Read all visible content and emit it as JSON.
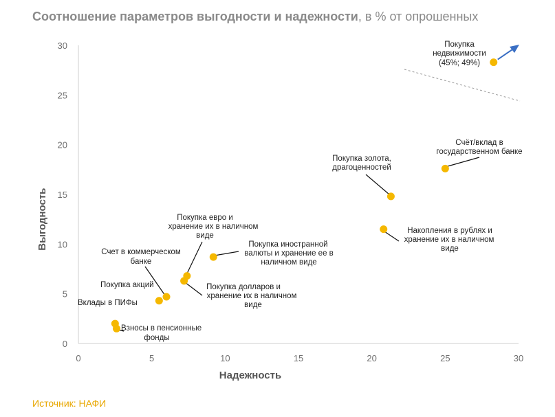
{
  "header": {
    "title_bold": "Соотношение параметров выгодности и надежности",
    "title_rest": ", в % от опрошенных"
  },
  "footer": {
    "source": "Источник: НАФИ"
  },
  "colors": {
    "point": "#f5b800",
    "leader": "#111111",
    "arrow": "#3a6fc4",
    "trend": "#9a9a9a",
    "source": "#e8a700"
  },
  "chart_data": {
    "type": "scatter",
    "title": "Соотношение параметров выгодности и надежности, в % от опрошенных",
    "xlabel": "Надежность",
    "ylabel": "Выгодность",
    "xlim": [
      0,
      30
    ],
    "ylim": [
      0,
      30
    ],
    "x_ticks": [
      0,
      5,
      10,
      15,
      20,
      25,
      30
    ],
    "y_ticks": [
      0,
      5,
      10,
      15,
      20,
      25,
      30
    ],
    "grid": false,
    "points": [
      {
        "label": "Вклады в ПИФы",
        "x": 2.5,
        "y": 2.0
      },
      {
        "label": "Взносы в пенсионные фонды",
        "x": 2.6,
        "y": 1.5
      },
      {
        "label": "Покупка акций",
        "x": 5.5,
        "y": 4.3
      },
      {
        "label": "Счет в коммерческом банке",
        "x": 6.0,
        "y": 4.7
      },
      {
        "label": "Покупка евро и хранение их в наличном виде",
        "x": 7.4,
        "y": 6.8
      },
      {
        "label": "Покупка долларов и хранение их в наличном виде",
        "x": 7.2,
        "y": 6.3
      },
      {
        "label": "Покупка иностранной валюты и хранение ее в наличном виде",
        "x": 9.2,
        "y": 8.7
      },
      {
        "label": "Покупка золота, драгоценностей",
        "x": 21.3,
        "y": 14.8
      },
      {
        "label": "Накопления в рублях и хранение их в наличном виде",
        "x": 20.8,
        "y": 11.5
      },
      {
        "label": "Счёт/вклад в государственном банке",
        "x": 25.0,
        "y": 17.6
      },
      {
        "label": "Покупка недвижимости (45%; 49%)",
        "x": 28.3,
        "y": 28.3
      }
    ],
    "annotations": {
      "offscale_arrow": "Покупка недвижимости (45%; 49%)",
      "break_line": "dashed"
    }
  },
  "labels": {
    "pif": [
      "Вклады в ПИФы"
    ],
    "pension": [
      "Взносы в пенсионные",
      "фонды"
    ],
    "stocks": [
      "Покупка акций"
    ],
    "commercial": [
      "Счет в коммерческом",
      "банке"
    ],
    "euro": [
      "Покупка евро и",
      "хранение их в наличном",
      "виде"
    ],
    "dollars": [
      "Покупка долларов и",
      "хранение их в наличном",
      "виде"
    ],
    "foreign": [
      "Покупка иностранной",
      "валюты и хранение ее в",
      "наличном виде"
    ],
    "gold": [
      "Покупка золота,",
      "драгоценностей"
    ],
    "rubles": [
      "Накопления в рублях и",
      "хранение их в наличном",
      "виде"
    ],
    "state": [
      "Счёт/вклад в",
      "государственном банке"
    ],
    "realty": [
      "Покупка",
      "недвижимости",
      "(45%; 49%)"
    ]
  }
}
